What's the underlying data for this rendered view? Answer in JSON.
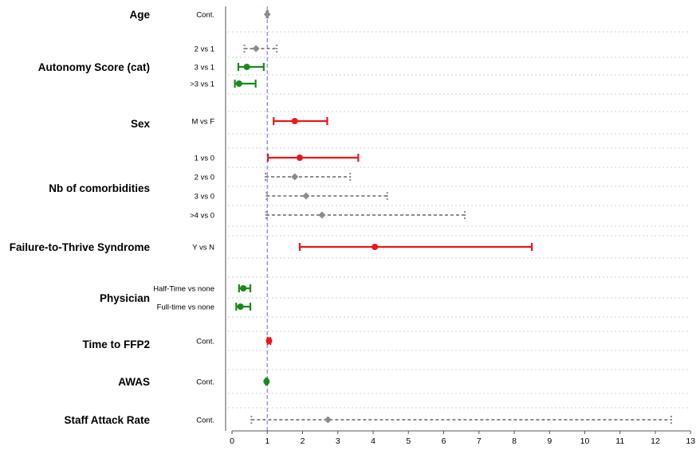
{
  "chart_data": {
    "type": "forest",
    "title": "",
    "xlabel": "",
    "ylabel": "",
    "xlim": [
      0,
      13
    ],
    "xticks": [
      0,
      1,
      2,
      3,
      4,
      5,
      6,
      7,
      8,
      9,
      10,
      11,
      12,
      13
    ],
    "reference_line": 1,
    "grid": "dotted horizontal",
    "colors": {
      "significant_increase": "#e8191b",
      "significant_decrease": "#1a8a1a",
      "non_significant": "#8c8c8c",
      "reference_line": "#8a8ae6"
    },
    "groups": [
      {
        "name": "Age",
        "rows": [
          {
            "label": "Cont.",
            "est": 1.0,
            "lo": 0.98,
            "hi": 1.02,
            "status": "non_significant"
          }
        ]
      },
      {
        "name": "Autonomy Score (cat)",
        "rows": [
          {
            "label": "2 vs 1",
            "est": 0.68,
            "lo": 0.35,
            "hi": 1.27,
            "status": "non_significant"
          },
          {
            "label": "3 vs 1",
            "est": 0.42,
            "lo": 0.18,
            "hi": 0.9,
            "status": "significant_decrease"
          },
          {
            "label": ">3 vs 1",
            "est": 0.2,
            "lo": 0.08,
            "hi": 0.67,
            "status": "significant_decrease"
          }
        ]
      },
      {
        "name": "Sex",
        "rows": [
          {
            "label": "M vs F",
            "est": 1.78,
            "lo": 1.18,
            "hi": 2.7,
            "status": "significant_increase"
          }
        ]
      },
      {
        "name": "Nb of comorbidities",
        "rows": [
          {
            "label": "1 vs 0",
            "est": 1.92,
            "lo": 1.02,
            "hi": 3.58,
            "status": "significant_increase"
          },
          {
            "label": "2 vs 0",
            "est": 1.78,
            "lo": 0.95,
            "hi": 3.35,
            "status": "non_significant"
          },
          {
            "label": "3 vs 0",
            "est": 2.1,
            "lo": 0.98,
            "hi": 4.4,
            "status": "non_significant"
          },
          {
            "label": ">4 vs 0",
            "est": 2.55,
            "lo": 0.97,
            "hi": 6.6,
            "status": "non_significant"
          }
        ]
      },
      {
        "name": "Failure-to-Thrive Syndrome",
        "rows": [
          {
            "label": "Y vs N",
            "est": 4.05,
            "lo": 1.92,
            "hi": 8.5,
            "status": "significant_increase"
          }
        ]
      },
      {
        "name": "Physician",
        "rows": [
          {
            "label": "Half-Time vs none",
            "est": 0.32,
            "lo": 0.2,
            "hi": 0.52,
            "status": "significant_decrease"
          },
          {
            "label": "Full-time vs none",
            "est": 0.24,
            "lo": 0.12,
            "hi": 0.52,
            "status": "significant_decrease"
          }
        ]
      },
      {
        "name": "Time to FFP2",
        "rows": [
          {
            "label": "Cont.",
            "est": 1.05,
            "lo": 1.01,
            "hi": 1.09,
            "status": "significant_increase"
          }
        ]
      },
      {
        "name": "AWAS",
        "rows": [
          {
            "label": "Cont.",
            "est": 0.98,
            "lo": 0.96,
            "hi": 1.0,
            "status": "significant_decrease"
          }
        ]
      },
      {
        "name": "Staff Attack Rate",
        "rows": [
          {
            "label": "Cont.",
            "est": 2.72,
            "lo": 0.55,
            "hi": 12.45,
            "status": "non_significant"
          }
        ]
      }
    ]
  }
}
